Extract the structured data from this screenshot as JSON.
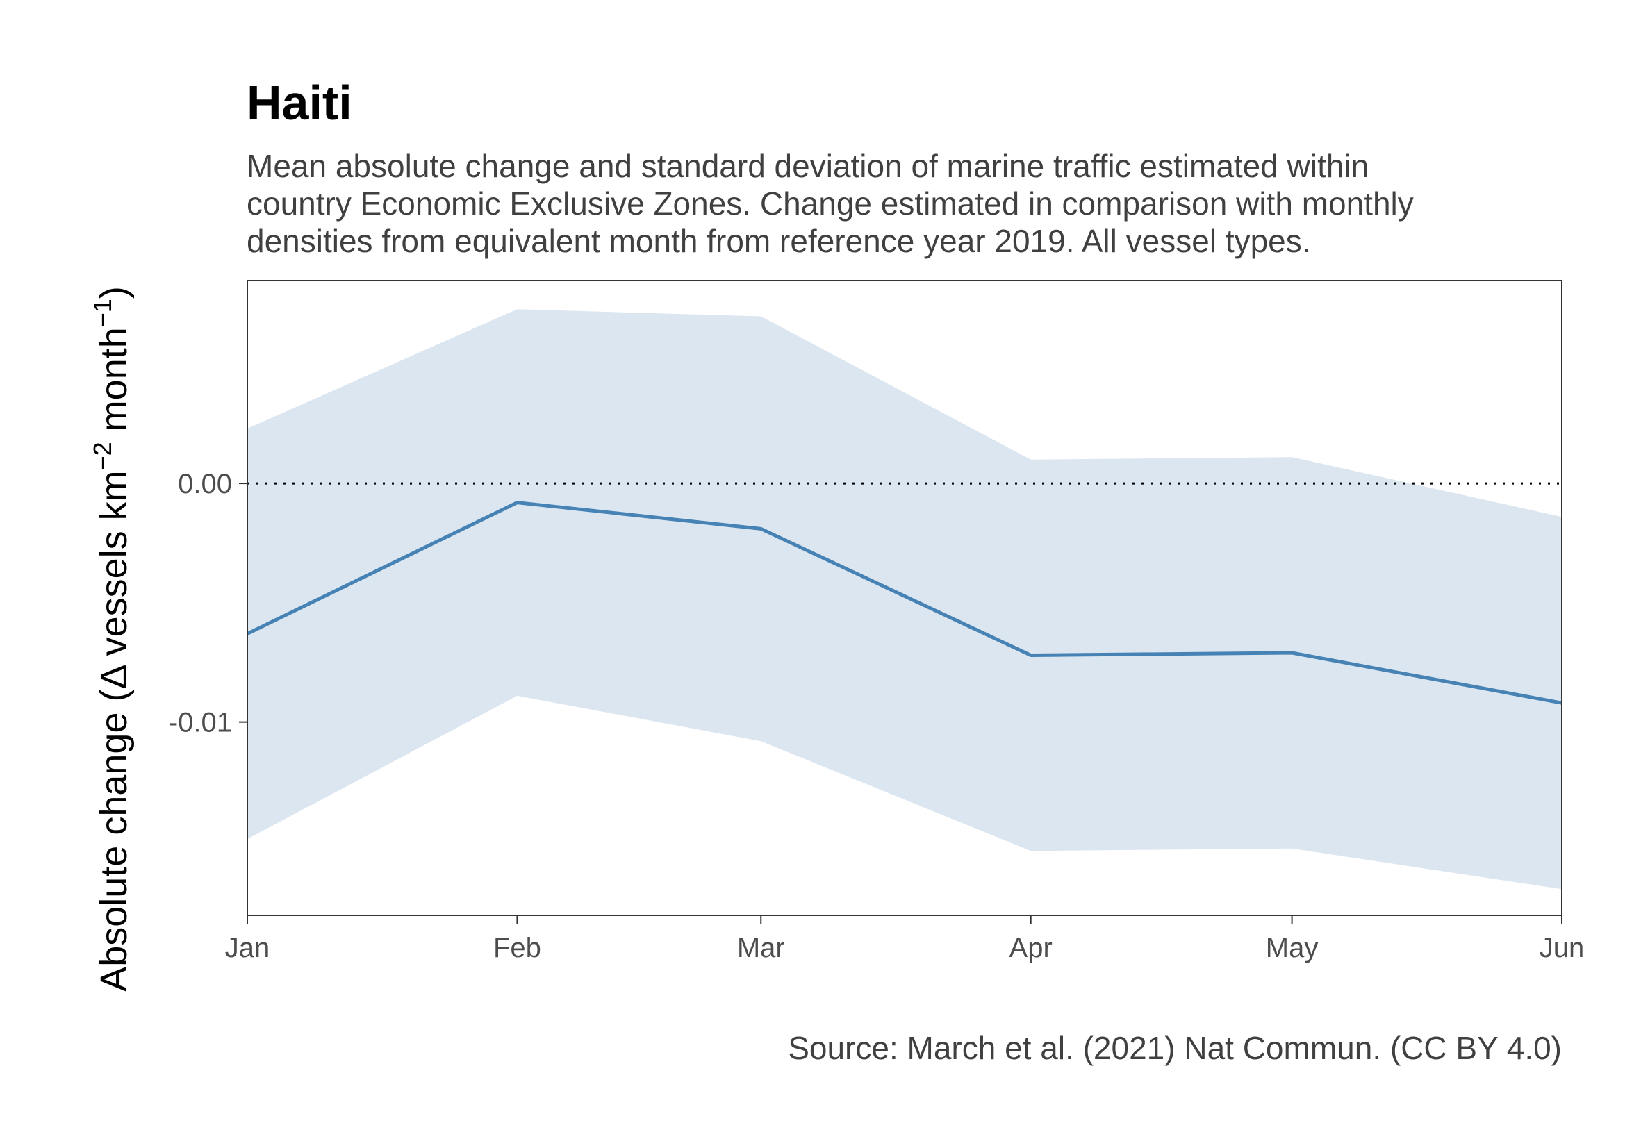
{
  "chart_data": {
    "type": "area",
    "title": "Haiti",
    "subtitle_lines": [
      "Mean absolute change and standard deviation of marine traffic estimated within",
      "country Economic Exclusive Zones. Change estimated in comparison with monthly",
      "densities from equivalent month from reference year 2019. All vessel types."
    ],
    "ylabel": {
      "prefix": "Absolute change (",
      "delta": "Δ",
      "units_a": " vessels km",
      "exp_a": "−2",
      "units_b": " month",
      "exp_b": "−1",
      "suffix": ")"
    },
    "xlabel": "",
    "caption": "Source: March et al. (2021) Nat Commun. (CC BY 4.0)",
    "categories": [
      "Jan",
      "Feb",
      "Mar",
      "Apr",
      "May",
      "Jun"
    ],
    "x_day_of_year": [
      1,
      32,
      60,
      91,
      121,
      152
    ],
    "series": [
      {
        "values": [
          -0.0063,
          -0.0008,
          -0.0019,
          -0.0072,
          -0.0071,
          -0.0092
        ],
        "color": "#4682b4"
      }
    ],
    "band": {
      "upper": [
        0.0023,
        0.0073,
        0.007,
        0.001,
        0.0011,
        -0.0014
      ],
      "lower": [
        -0.0149,
        -0.0089,
        -0.0108,
        -0.0154,
        -0.0153,
        -0.017
      ],
      "color": "#dbe6f1"
    },
    "reference_line": {
      "y": 0,
      "style": "dotted",
      "color": "#000000"
    },
    "yticks": [
      0.0,
      -0.01
    ],
    "ytick_labels": [
      "0.00",
      "-0.01"
    ],
    "ylim": [
      -0.0181,
      0.0085
    ],
    "xlim": [
      1,
      152
    ],
    "grid": false
  }
}
